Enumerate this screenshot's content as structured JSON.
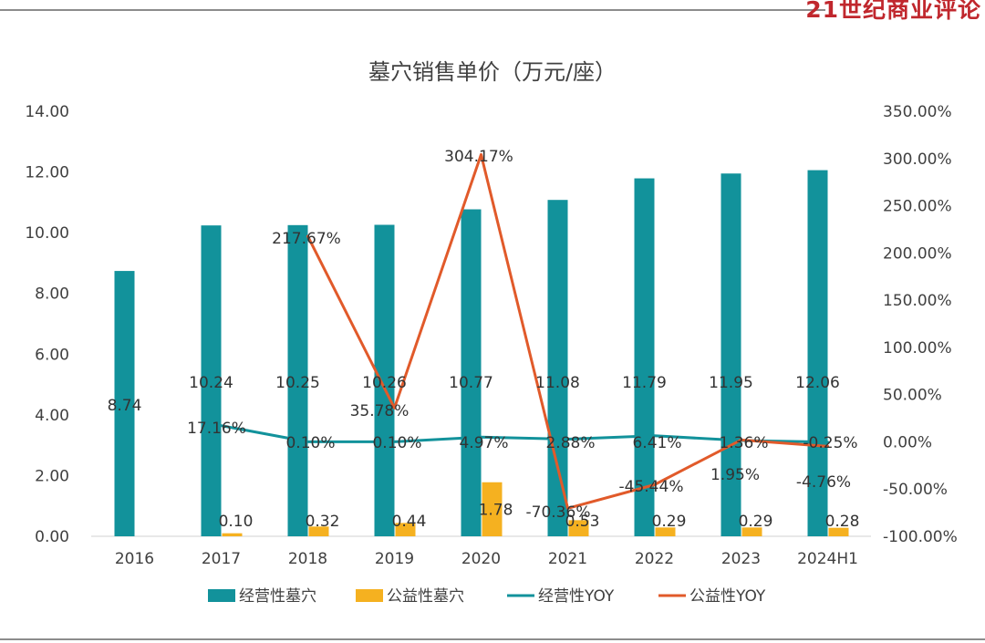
{
  "brand": {
    "text": "21世纪商业评论",
    "color": "#c0272d"
  },
  "chart_data": {
    "type": "bar+line",
    "title": "墓穴销售单价（万元/座）",
    "categories": [
      "2016",
      "2017",
      "2018",
      "2019",
      "2020",
      "2021",
      "2022",
      "2023",
      "2024H1"
    ],
    "y_left": {
      "ylim": [
        0,
        14
      ],
      "ticks": [
        0,
        2,
        4,
        6,
        8,
        10,
        12,
        14
      ],
      "tick_labels": [
        "0.00",
        "2.00",
        "4.00",
        "6.00",
        "8.00",
        "10.00",
        "12.00",
        "14.00"
      ]
    },
    "y_right": {
      "ylim": [
        -100,
        350
      ],
      "ticks": [
        -100,
        -50,
        0,
        50,
        100,
        150,
        200,
        250,
        300,
        350
      ],
      "tick_labels": [
        "-100.00%",
        "-50.00%",
        "0.00%",
        "50.00%",
        "100.00%",
        "150.00%",
        "200.00%",
        "250.00%",
        "300.00%",
        "350.00%"
      ]
    },
    "legend_position": "bottom",
    "grid": false,
    "series": [
      {
        "name": "经营性墓穴",
        "kind": "bar",
        "axis": "left",
        "color": "#12929b",
        "values": [
          8.74,
          10.24,
          10.25,
          10.26,
          10.77,
          11.08,
          11.79,
          11.95,
          12.06
        ],
        "labels": [
          "8.74",
          "10.24",
          "10.25",
          "10.26",
          "10.77",
          "11.08",
          "11.79",
          "11.95",
          "12.06"
        ]
      },
      {
        "name": "公益性墓穴",
        "kind": "bar",
        "axis": "left",
        "color": "#f5b120",
        "values": [
          null,
          0.1,
          0.32,
          0.44,
          1.78,
          0.53,
          0.29,
          0.29,
          0.28
        ],
        "labels": [
          null,
          "0.10",
          "0.32",
          "0.44",
          "1.78",
          "0.53",
          "0.29",
          "0.29",
          "0.28"
        ]
      },
      {
        "name": "经营性YOY",
        "kind": "line",
        "axis": "right",
        "color": "#12929b",
        "values": [
          null,
          17.16,
          0.1,
          0.1,
          4.97,
          2.88,
          6.41,
          1.36,
          -0.25
        ],
        "labels": [
          null,
          "17.16%",
          "0.10%",
          "0.10%",
          "4.97%",
          "2.88%",
          "6.41%",
          "1.36%",
          "-0.25%"
        ]
      },
      {
        "name": "公益性YOY",
        "kind": "line",
        "axis": "right",
        "color": "#e15a2a",
        "values": [
          null,
          null,
          217.67,
          35.78,
          304.17,
          -70.36,
          -45.44,
          1.95,
          -4.76
        ],
        "labels": [
          null,
          null,
          "217.67%",
          "35.78%",
          "304.17%",
          "-70.36%",
          "-45.44%",
          "1.95%",
          "-4.76%"
        ]
      }
    ]
  }
}
